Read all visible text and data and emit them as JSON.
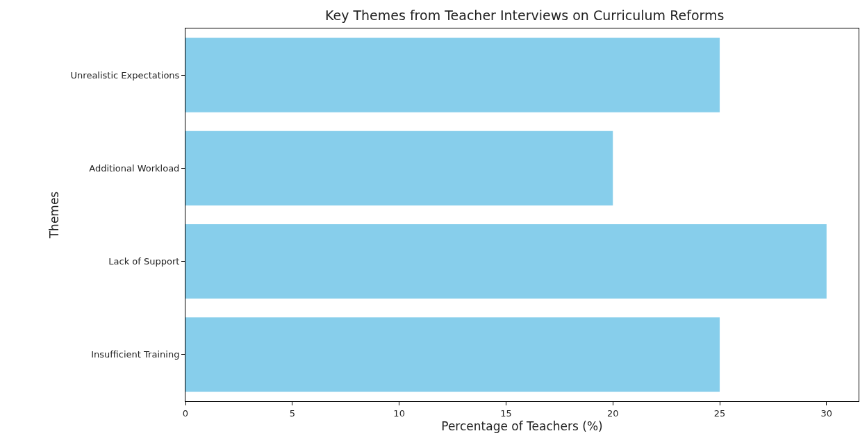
{
  "chart_data": {
    "type": "bar",
    "orientation": "horizontal",
    "title": "Key Themes from Teacher Interviews on Curriculum Reforms",
    "xlabel": "Percentage of Teachers (%)",
    "ylabel": "Themes",
    "categories": [
      "Unrealistic Expectations",
      "Additional Workload",
      "Lack of Support",
      "Insufficient Training"
    ],
    "values": [
      25,
      20,
      30,
      25
    ],
    "color": "#87ceeb",
    "xlim": [
      0,
      31.5
    ],
    "xticks": [
      0,
      5,
      10,
      15,
      20,
      25,
      30
    ],
    "grid": false
  }
}
